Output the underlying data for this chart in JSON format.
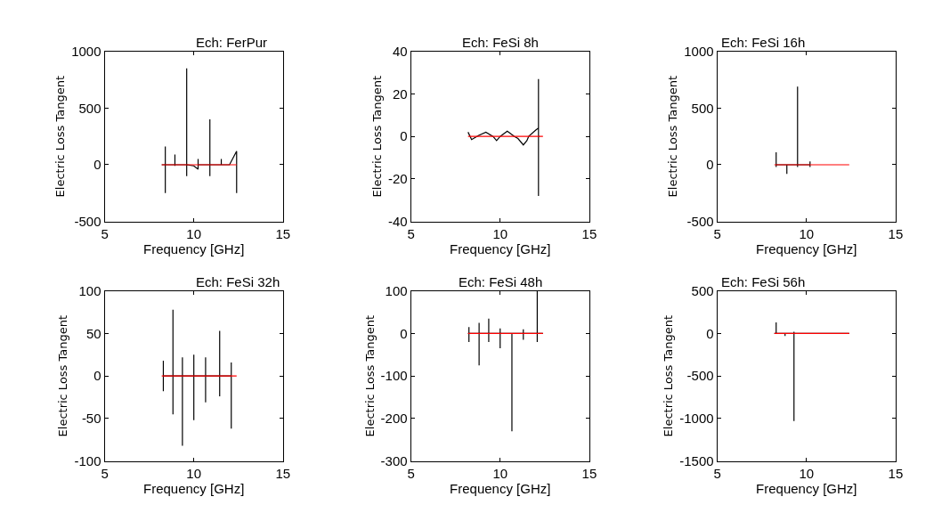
{
  "chart_data": [
    {
      "type": "line",
      "title": "Ech: FerPur",
      "xlabel": "Frequency [GHz]",
      "ylabel": "Electric Loss Tangent",
      "xlim": [
        5,
        15
      ],
      "xticks": [
        5,
        10,
        15
      ],
      "ylim": [
        -500,
        1000
      ],
      "yticks": [
        -500,
        0,
        500,
        1000
      ],
      "series": [
        {
          "color": "#000000",
          "x": [
            8.2,
            8.4,
            8.4,
            8.4,
            8.4,
            8.94,
            8.94,
            8.94,
            8.94,
            9.6,
            9.6,
            9.6,
            9.6,
            10.0,
            10.24,
            10.24,
            10.24,
            10.9,
            10.9,
            10.9,
            10.9,
            11.54,
            11.54,
            11.54,
            12.0,
            12.4,
            12.4,
            12.4
          ],
          "values": [
            0,
            0,
            160,
            -250,
            0,
            0,
            90,
            -10,
            0,
            0,
            850,
            -100,
            0,
            -10,
            -40,
            50,
            0,
            0,
            400,
            -100,
            0,
            0,
            50,
            0,
            0,
            120,
            -250,
            0
          ]
        },
        {
          "color": "#ff0000",
          "x": [
            8.2,
            12.4
          ],
          "values": [
            0,
            0
          ]
        }
      ]
    },
    {
      "type": "line",
      "title": "Ech: FeSi 8h",
      "xlabel": "Frequency [GHz]",
      "ylabel": "Electric Loss Tangent",
      "xlim": [
        5,
        15
      ],
      "xticks": [
        5,
        10,
        15
      ],
      "ylim": [
        -40,
        40
      ],
      "yticks": [
        -40,
        -20,
        0,
        20,
        40
      ],
      "series": [
        {
          "color": "#000000",
          "x": [
            8.2,
            8.4,
            8.8,
            9.2,
            9.6,
            9.8,
            10.0,
            10.4,
            10.8,
            11.0,
            11.3,
            11.5,
            11.6,
            12.0,
            12.15,
            12.15,
            12.15,
            12.15,
            12.2
          ],
          "values": [
            2,
            -1.5,
            0.5,
            2,
            0,
            -2,
            0,
            2.5,
            0,
            -1,
            -4,
            -2,
            0,
            3,
            4,
            27,
            -28,
            0,
            0
          ]
        },
        {
          "color": "#ff0000",
          "x": [
            8.2,
            12.4
          ],
          "values": [
            0,
            0
          ]
        }
      ]
    },
    {
      "type": "line",
      "title": "Ech: FeSi 16h",
      "xlabel": "Frequency [GHz]",
      "ylabel": "Electric Loss Tangent",
      "xlim": [
        5,
        15
      ],
      "xticks": [
        5,
        10,
        15
      ],
      "ylim": [
        -500,
        1000
      ],
      "yticks": [
        -500,
        0,
        500,
        1000
      ],
      "series": [
        {
          "color": "#000000",
          "x": [
            8.3,
            8.3,
            8.3,
            8.3,
            8.9,
            8.9,
            8.9,
            9.5,
            9.5,
            9.5,
            9.5,
            10.2,
            10.2,
            10.2,
            10.2
          ],
          "values": [
            0,
            110,
            -20,
            0,
            0,
            -80,
            0,
            0,
            690,
            -20,
            0,
            0,
            30,
            -20,
            0
          ]
        },
        {
          "color": "#ff0000",
          "x": [
            8.2,
            12.4
          ],
          "values": [
            0,
            0
          ]
        }
      ]
    },
    {
      "type": "line",
      "title": "Ech: FeSi 32h",
      "xlabel": "Frequency [GHz]",
      "ylabel": "Electric Loss Tangent",
      "xlim": [
        5,
        15
      ],
      "xticks": [
        5,
        10,
        15
      ],
      "ylim": [
        -100,
        100
      ],
      "yticks": [
        -100,
        -50,
        0,
        50,
        100
      ],
      "series": [
        {
          "color": "#000000",
          "x": [
            8.29,
            8.29,
            8.29,
            8.29,
            8.83,
            8.83,
            8.83,
            8.83,
            9.36,
            9.36,
            9.36,
            9.36,
            10.0,
            10.0,
            10.0,
            10.0,
            10.66,
            10.66,
            10.66,
            10.66,
            11.45,
            11.45,
            11.45,
            11.45,
            12.1,
            12.1,
            12.1,
            12.1
          ],
          "values": [
            0,
            18,
            -18,
            0,
            0,
            78,
            -45,
            0,
            0,
            22,
            -82,
            0,
            0,
            25,
            -52,
            0,
            0,
            22,
            -31,
            0,
            0,
            53,
            -24,
            0,
            0,
            16,
            -62,
            0
          ]
        },
        {
          "color": "#ff0000",
          "x": [
            8.2,
            12.4
          ],
          "values": [
            0,
            0
          ]
        }
      ]
    },
    {
      "type": "line",
      "title": "Ech: FeSi 48h",
      "xlabel": "Frequency [GHz]",
      "ylabel": "Electric Loss Tangent",
      "xlim": [
        5,
        15
      ],
      "xticks": [
        5,
        10,
        15
      ],
      "ylim": [
        -300,
        100
      ],
      "yticks": [
        -300,
        -200,
        -100,
        0,
        100
      ],
      "series": [
        {
          "color": "#000000",
          "x": [
            8.2,
            8.25,
            8.25,
            8.25,
            8.25,
            8.82,
            8.82,
            8.82,
            8.82,
            9.36,
            9.36,
            9.36,
            9.36,
            10.0,
            10.0,
            10.0,
            10.0,
            10.66,
            10.66,
            10.66,
            11.3,
            11.3,
            11.3,
            11.3,
            12.08,
            12.08,
            12.08,
            12.08,
            12.4
          ],
          "values": [
            0,
            0,
            15,
            -20,
            0,
            0,
            25,
            -75,
            0,
            0,
            35,
            -20,
            0,
            0,
            12,
            -35,
            0,
            0,
            -230,
            0,
            0,
            10,
            -15,
            0,
            0,
            100,
            -20,
            0,
            0
          ]
        },
        {
          "color": "#ff0000",
          "x": [
            8.2,
            12.4
          ],
          "values": [
            0,
            0
          ]
        }
      ]
    },
    {
      "type": "line",
      "title": "Ech: FeSi 56h",
      "xlabel": "Frequency [GHz]",
      "ylabel": "Electric Loss Tangent",
      "xlim": [
        5,
        15
      ],
      "xticks": [
        5,
        10,
        15
      ],
      "ylim": [
        -1500,
        500
      ],
      "yticks": [
        -1500,
        -1000,
        -500,
        0,
        500
      ],
      "series": [
        {
          "color": "#000000",
          "x": [
            8.2,
            8.3,
            8.3,
            8.3,
            8.8,
            8.8,
            8.8,
            9.3,
            9.3,
            9.3,
            9.3,
            12.4
          ],
          "values": [
            0,
            0,
            130,
            0,
            0,
            -30,
            0,
            0,
            20,
            -1030,
            0,
            0
          ]
        },
        {
          "color": "#ff0000",
          "x": [
            8.2,
            12.4
          ],
          "values": [
            0,
            0
          ]
        }
      ]
    }
  ]
}
